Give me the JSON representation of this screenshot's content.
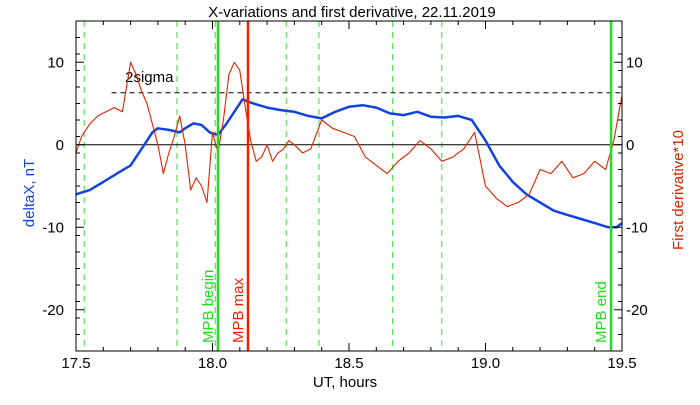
{
  "chart_data": {
    "type": "line",
    "title": "X-variations and first derivative, 22.11.2019",
    "xlabel": "UT, hours",
    "ylabel_left": "deltaX, nT",
    "ylabel_right": "First derivative*10",
    "xlim": [
      17.5,
      19.5
    ],
    "ylim": [
      -25,
      15
    ],
    "x_ticks": [
      17.5,
      18.0,
      18.5,
      19.0,
      19.5
    ],
    "x_tick_labels": [
      "17.5",
      "18.0",
      "18.5",
      "19.0",
      "19.5"
    ],
    "y_ticks": [
      -20,
      -10,
      0,
      10
    ],
    "y_tick_labels": [
      "-20",
      "-10",
      "0",
      "10"
    ],
    "threshold": {
      "label": "2sigma",
      "y": 6.3
    },
    "zero_line": 0,
    "dashed_verticals": [
      17.53,
      17.87,
      18.01,
      18.27,
      18.39,
      18.66,
      18.84
    ],
    "vertical_markers": [
      {
        "x": 18.02,
        "label": "MPB begin",
        "color": "#22dd22"
      },
      {
        "x": 18.13,
        "label": "MPB max",
        "color": "#ee2200"
      },
      {
        "x": 19.46,
        "label": "MPB end",
        "color": "#22dd22"
      }
    ],
    "series": [
      {
        "color": "#1144dd",
        "x": [
          17.5,
          17.55,
          17.6,
          17.65,
          17.7,
          17.72,
          17.75,
          17.78,
          17.8,
          17.84,
          17.88,
          17.9,
          17.93,
          17.96,
          17.99,
          18.02,
          18.05,
          18.08,
          18.11,
          18.15,
          18.2,
          18.25,
          18.3,
          18.35,
          18.4,
          18.45,
          18.5,
          18.55,
          18.6,
          18.65,
          18.7,
          18.75,
          18.8,
          18.85,
          18.9,
          18.95,
          19.0,
          19.05,
          19.1,
          19.15,
          19.2,
          19.25,
          19.3,
          19.35,
          19.4,
          19.45,
          19.48,
          19.5
        ],
        "y": [
          -6.0,
          -5.5,
          -4.5,
          -3.5,
          -2.5,
          -1.5,
          0.0,
          1.5,
          2.0,
          1.8,
          1.5,
          2.0,
          2.6,
          2.4,
          1.5,
          1.2,
          2.5,
          4.0,
          5.5,
          5.0,
          4.5,
          4.2,
          4.0,
          3.5,
          3.2,
          4.0,
          4.6,
          4.8,
          4.5,
          3.8,
          3.6,
          4.0,
          3.4,
          3.3,
          3.5,
          3.0,
          0.5,
          -2.5,
          -4.5,
          -6.0,
          -7.0,
          -8.0,
          -8.5,
          -9.0,
          -9.5,
          -10.0,
          -10.0,
          -9.5
        ]
      },
      {
        "color": "#dd2200",
        "x": [
          17.5,
          17.52,
          17.55,
          17.58,
          17.61,
          17.64,
          17.67,
          17.7,
          17.72,
          17.74,
          17.76,
          17.78,
          17.8,
          17.82,
          17.84,
          17.86,
          17.88,
          17.9,
          17.92,
          17.94,
          17.96,
          17.98,
          18.0,
          18.02,
          18.04,
          18.06,
          18.08,
          18.1,
          18.12,
          18.14,
          18.16,
          18.18,
          18.2,
          18.22,
          18.24,
          18.26,
          18.28,
          18.3,
          18.33,
          18.36,
          18.4,
          18.44,
          18.48,
          18.52,
          18.56,
          18.6,
          18.64,
          18.68,
          18.72,
          18.76,
          18.8,
          18.84,
          18.88,
          18.92,
          18.96,
          19.0,
          19.04,
          19.08,
          19.12,
          19.16,
          19.2,
          19.24,
          19.28,
          19.32,
          19.36,
          19.4,
          19.44,
          19.47,
          19.5
        ],
        "y": [
          -1.0,
          1.0,
          2.5,
          3.5,
          4.0,
          4.5,
          4.0,
          10.0,
          8.5,
          6.5,
          5.0,
          2.5,
          0.0,
          -3.5,
          -1.0,
          1.0,
          3.5,
          0.0,
          -5.5,
          -4.0,
          -5.0,
          -7.0,
          1.5,
          -1.0,
          3.0,
          8.5,
          10.0,
          9.0,
          4.5,
          0.5,
          -2.0,
          -1.5,
          0.0,
          -2.0,
          -1.0,
          -0.5,
          0.5,
          0.0,
          -1.0,
          -0.5,
          3.0,
          2.0,
          1.5,
          1.0,
          -1.5,
          -2.5,
          -3.5,
          -2.0,
          -1.0,
          0.5,
          -0.5,
          -2.0,
          -1.5,
          -0.5,
          1.5,
          -5.0,
          -6.5,
          -7.5,
          -7.0,
          -6.0,
          -3.0,
          -3.5,
          -2.0,
          -4.0,
          -3.5,
          -2.0,
          -3.0,
          0.5,
          6.0
        ]
      }
    ]
  }
}
